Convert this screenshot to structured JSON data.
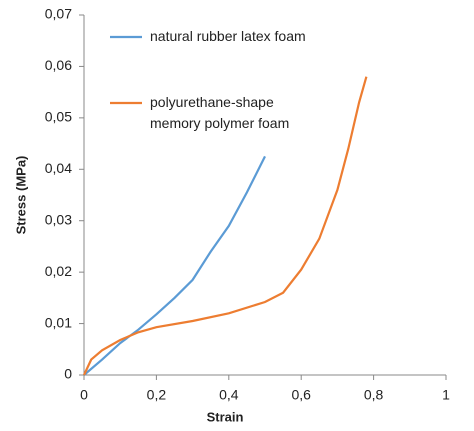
{
  "chart_data": {
    "type": "line",
    "x_label": "Strain",
    "y_label": "Stress  (MPa)",
    "xlim": [
      0,
      1
    ],
    "ylim": [
      0,
      0.07
    ],
    "xticks": [
      0,
      {
        "value": 0.2,
        "label": "0,2"
      },
      {
        "value": 0.4,
        "label": "0,4"
      },
      {
        "value": 0.6,
        "label": "0,6"
      },
      {
        "value": 0.8,
        "label": "0,8"
      },
      1
    ],
    "yticks": [
      0,
      {
        "value": 0.01,
        "label": "0,01"
      },
      {
        "value": 0.02,
        "label": "0,02"
      },
      {
        "value": 0.03,
        "label": "0,03"
      },
      {
        "value": 0.04,
        "label": "0,04"
      },
      {
        "value": 0.05,
        "label": "0,05"
      },
      {
        "value": 0.06,
        "label": "0,06"
      },
      {
        "value": 0.07,
        "label": "0,07"
      }
    ],
    "grid": false,
    "series": [
      {
        "name": "natural rubber latex foam",
        "color": "#5b9bd5",
        "x": [
          0,
          0.05,
          0.1,
          0.15,
          0.2,
          0.25,
          0.3,
          0.35,
          0.4,
          0.45,
          0.5
        ],
        "values": [
          0,
          0.003,
          0.0062,
          0.0088,
          0.0118,
          0.015,
          0.0185,
          0.024,
          0.029,
          0.0355,
          0.0425
        ]
      },
      {
        "name": "polyurethane-shape memory polymer foam",
        "color": "#ed7d31",
        "x": [
          0,
          0.02,
          0.05,
          0.1,
          0.15,
          0.2,
          0.3,
          0.4,
          0.5,
          0.55,
          0.6,
          0.65,
          0.7,
          0.73,
          0.76,
          0.78
        ],
        "values": [
          0,
          0.003,
          0.0048,
          0.0068,
          0.0083,
          0.0093,
          0.0105,
          0.012,
          0.0142,
          0.016,
          0.0205,
          0.0265,
          0.036,
          0.044,
          0.053,
          0.058
        ]
      }
    ]
  }
}
